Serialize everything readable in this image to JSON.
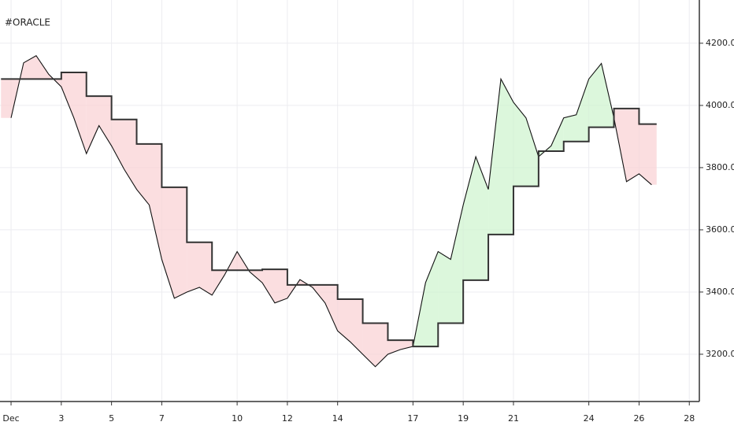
{
  "chart_data": {
    "type": "line",
    "title": "#ORACLE",
    "xlim": [
      0.56,
      28.4
    ],
    "xticks": [
      {
        "value": 1,
        "label": "Dec"
      },
      3,
      5,
      7,
      10,
      12,
      14,
      17,
      19,
      21,
      24,
      26,
      28
    ],
    "ylim": [
      3048,
      4339
    ],
    "yticks": [
      {
        "value": 3200,
        "label": "3200.0"
      },
      {
        "value": 3400,
        "label": "3400.0"
      },
      {
        "value": 3600,
        "label": "3600.0"
      },
      {
        "value": 3800,
        "label": "3800.0"
      },
      {
        "value": 4000,
        "label": "4000.0"
      },
      {
        "value": 4200,
        "label": "4200.0"
      }
    ],
    "grid": true,
    "series": [
      {
        "color": "#111111",
        "x": [
          1,
          1.5,
          2,
          2.5,
          3,
          3.5,
          4,
          4.5,
          5,
          5.5,
          6,
          6.5,
          7,
          7.5,
          8,
          8.5,
          9,
          9.5,
          10,
          10.5,
          11,
          11.5,
          12,
          12.5,
          13,
          13.5,
          14,
          14.5,
          15,
          15.5,
          16,
          16.5,
          17,
          17.5,
          18,
          18.5,
          19,
          19.5,
          20,
          20.5,
          21,
          21.5,
          22,
          22.5,
          23,
          23.5,
          24,
          24.5,
          25,
          25.5,
          26,
          26.5
        ],
        "values": [
          3960,
          4137,
          4160,
          4100,
          4060,
          3960,
          3845,
          3935,
          3870,
          3795,
          3730,
          3680,
          3505,
          3380,
          3400,
          3415,
          3390,
          3455,
          3530,
          3465,
          3430,
          3365,
          3380,
          3440,
          3415,
          3365,
          3275,
          3240,
          3200,
          3160,
          3200,
          3215,
          3225,
          3430,
          3530,
          3505,
          3680,
          3835,
          3730,
          4085,
          4010,
          3960,
          3835,
          3870,
          3960,
          3970,
          4085,
          4135,
          3960,
          3755,
          3780,
          3745
        ]
      },
      {
        "color": "#333333",
        "step": true,
        "x": [
          0.6,
          3,
          4,
          5,
          6,
          7,
          8,
          9,
          11,
          12,
          14,
          15,
          16,
          17,
          18,
          19,
          20,
          21,
          22,
          23,
          24,
          25,
          26,
          26.7
        ],
        "values": [
          4085,
          4106,
          4030,
          3955,
          3876,
          3737,
          3560,
          3470,
          3473,
          3423,
          3377,
          3300,
          3245,
          3225,
          3300,
          3438,
          3585,
          3740,
          3853,
          3884,
          3930,
          3990,
          3940,
          3940
        ]
      }
    ]
  }
}
